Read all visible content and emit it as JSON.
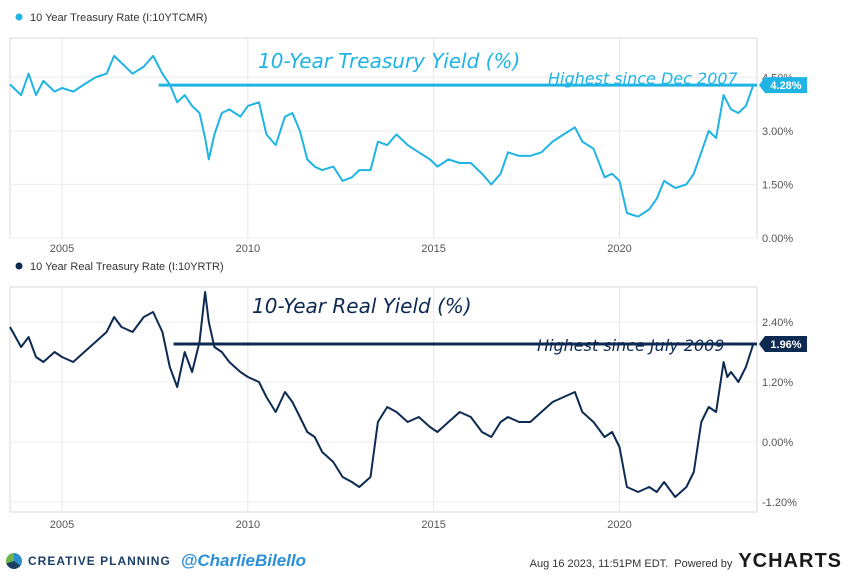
{
  "chart_data": [
    {
      "type": "line",
      "legend": "10 Year Treasury Rate (I:10YTCMR)",
      "title": "10-Year Treasury Yield (%)",
      "annotation": "Highest since Dec 2007",
      "current_label": "4.28%",
      "color": "#1fb4e4",
      "ylim": [
        0,
        5.6
      ],
      "yticks": [
        "4.50%",
        "3.00%",
        "1.50%",
        "0.00%"
      ],
      "ytick_values": [
        4.5,
        3.0,
        1.5,
        0.0
      ],
      "xticks": [
        "2005",
        "2010",
        "2015",
        "2020"
      ],
      "xtick_values": [
        2005,
        2010,
        2015,
        2020
      ],
      "xlim": [
        2003.6,
        2023.7
      ],
      "reference_line": {
        "x_start": 2007.6,
        "y": 4.28
      },
      "x": [
        2003.6,
        2003.9,
        2004.1,
        2004.3,
        2004.5,
        2004.8,
        2005.0,
        2005.3,
        2005.6,
        2005.9,
        2006.2,
        2006.4,
        2006.6,
        2006.9,
        2007.2,
        2007.45,
        2007.7,
        2007.9,
        2008.1,
        2008.3,
        2008.5,
        2008.7,
        2008.85,
        2008.95,
        2009.1,
        2009.3,
        2009.5,
        2009.8,
        2010.0,
        2010.3,
        2010.5,
        2010.75,
        2011.0,
        2011.2,
        2011.4,
        2011.6,
        2011.8,
        2012.0,
        2012.3,
        2012.55,
        2012.8,
        2013.0,
        2013.3,
        2013.5,
        2013.75,
        2014.0,
        2014.3,
        2014.6,
        2014.9,
        2015.1,
        2015.4,
        2015.7,
        2016.0,
        2016.3,
        2016.55,
        2016.8,
        2017.0,
        2017.3,
        2017.6,
        2017.9,
        2018.2,
        2018.5,
        2018.8,
        2019.0,
        2019.3,
        2019.6,
        2019.8,
        2020.0,
        2020.2,
        2020.5,
        2020.8,
        2021.0,
        2021.2,
        2021.5,
        2021.8,
        2022.0,
        2022.2,
        2022.4,
        2022.6,
        2022.8,
        2022.9,
        2023.0,
        2023.2,
        2023.4,
        2023.6
      ],
      "values": [
        4.3,
        4.0,
        4.6,
        4.0,
        4.4,
        4.1,
        4.2,
        4.1,
        4.3,
        4.5,
        4.6,
        5.1,
        4.9,
        4.6,
        4.8,
        5.1,
        4.6,
        4.3,
        3.8,
        4.0,
        3.7,
        3.5,
        2.8,
        2.2,
        2.9,
        3.5,
        3.6,
        3.4,
        3.7,
        3.8,
        2.9,
        2.6,
        3.4,
        3.5,
        3.0,
        2.2,
        2.0,
        1.9,
        2.0,
        1.6,
        1.7,
        1.9,
        1.9,
        2.7,
        2.6,
        2.9,
        2.6,
        2.4,
        2.2,
        2.0,
        2.2,
        2.1,
        2.1,
        1.8,
        1.5,
        1.8,
        2.4,
        2.3,
        2.3,
        2.4,
        2.7,
        2.9,
        3.1,
        2.7,
        2.5,
        1.7,
        1.8,
        1.6,
        0.7,
        0.6,
        0.8,
        1.1,
        1.6,
        1.4,
        1.5,
        1.8,
        2.4,
        3.0,
        2.8,
        4.0,
        3.8,
        3.6,
        3.5,
        3.7,
        4.28
      ]
    },
    {
      "type": "line",
      "legend": "10 Year Real Treasury Rate (I:10YRTR)",
      "title": "10-Year Real Yield (%)",
      "annotation": "Highest since July 2009",
      "current_label": "1.96%",
      "color": "#0d2a52",
      "ylim": [
        -1.4,
        3.1
      ],
      "yticks": [
        "2.40%",
        "1.20%",
        "0.00%",
        "-1.20%"
      ],
      "ytick_values": [
        2.4,
        1.2,
        0.0,
        -1.2
      ],
      "xticks": [
        "2005",
        "2010",
        "2015",
        "2020"
      ],
      "xtick_values": [
        2005,
        2010,
        2015,
        2020
      ],
      "xlim": [
        2003.6,
        2023.7
      ],
      "reference_line": {
        "x_start": 2008.0,
        "y": 1.96
      },
      "x": [
        2003.6,
        2003.9,
        2004.1,
        2004.3,
        2004.5,
        2004.8,
        2005.0,
        2005.3,
        2005.6,
        2005.9,
        2006.2,
        2006.4,
        2006.6,
        2006.9,
        2007.2,
        2007.45,
        2007.7,
        2007.9,
        2008.1,
        2008.3,
        2008.5,
        2008.7,
        2008.85,
        2008.95,
        2009.1,
        2009.3,
        2009.5,
        2009.8,
        2010.0,
        2010.3,
        2010.5,
        2010.75,
        2011.0,
        2011.2,
        2011.4,
        2011.6,
        2011.8,
        2012.0,
        2012.3,
        2012.55,
        2012.8,
        2013.0,
        2013.3,
        2013.5,
        2013.75,
        2014.0,
        2014.3,
        2014.6,
        2014.9,
        2015.1,
        2015.4,
        2015.7,
        2016.0,
        2016.3,
        2016.55,
        2016.8,
        2017.0,
        2017.3,
        2017.6,
        2017.9,
        2018.2,
        2018.5,
        2018.8,
        2019.0,
        2019.3,
        2019.6,
        2019.8,
        2020.0,
        2020.2,
        2020.5,
        2020.8,
        2021.0,
        2021.2,
        2021.5,
        2021.8,
        2022.0,
        2022.2,
        2022.4,
        2022.6,
        2022.8,
        2022.9,
        2023.0,
        2023.2,
        2023.4,
        2023.6
      ],
      "values": [
        2.3,
        1.9,
        2.1,
        1.7,
        1.6,
        1.8,
        1.7,
        1.6,
        1.8,
        2.0,
        2.2,
        2.5,
        2.3,
        2.2,
        2.5,
        2.6,
        2.2,
        1.5,
        1.1,
        1.8,
        1.4,
        2.0,
        3.0,
        2.4,
        1.9,
        1.8,
        1.6,
        1.4,
        1.3,
        1.2,
        0.9,
        0.6,
        1.0,
        0.8,
        0.5,
        0.2,
        0.1,
        -0.2,
        -0.4,
        -0.7,
        -0.8,
        -0.9,
        -0.7,
        0.4,
        0.7,
        0.6,
        0.4,
        0.5,
        0.3,
        0.2,
        0.4,
        0.6,
        0.5,
        0.2,
        0.1,
        0.4,
        0.5,
        0.4,
        0.4,
        0.6,
        0.8,
        0.9,
        1.0,
        0.6,
        0.4,
        0.1,
        0.2,
        -0.1,
        -0.9,
        -1.0,
        -0.9,
        -1.0,
        -0.8,
        -1.1,
        -0.9,
        -0.6,
        0.4,
        0.7,
        0.6,
        1.6,
        1.3,
        1.4,
        1.2,
        1.5,
        1.96
      ]
    }
  ],
  "footer": {
    "left_brand": "CREATIVE PLANNING",
    "handle": "@CharlieBilello",
    "timestamp": "Aug 16 2023, 11:51PM EDT.",
    "powered_by": "Powered by",
    "brand": "YCHARTS"
  },
  "icons": {
    "left_brand_logo": "creative-planning-logo-icon"
  }
}
